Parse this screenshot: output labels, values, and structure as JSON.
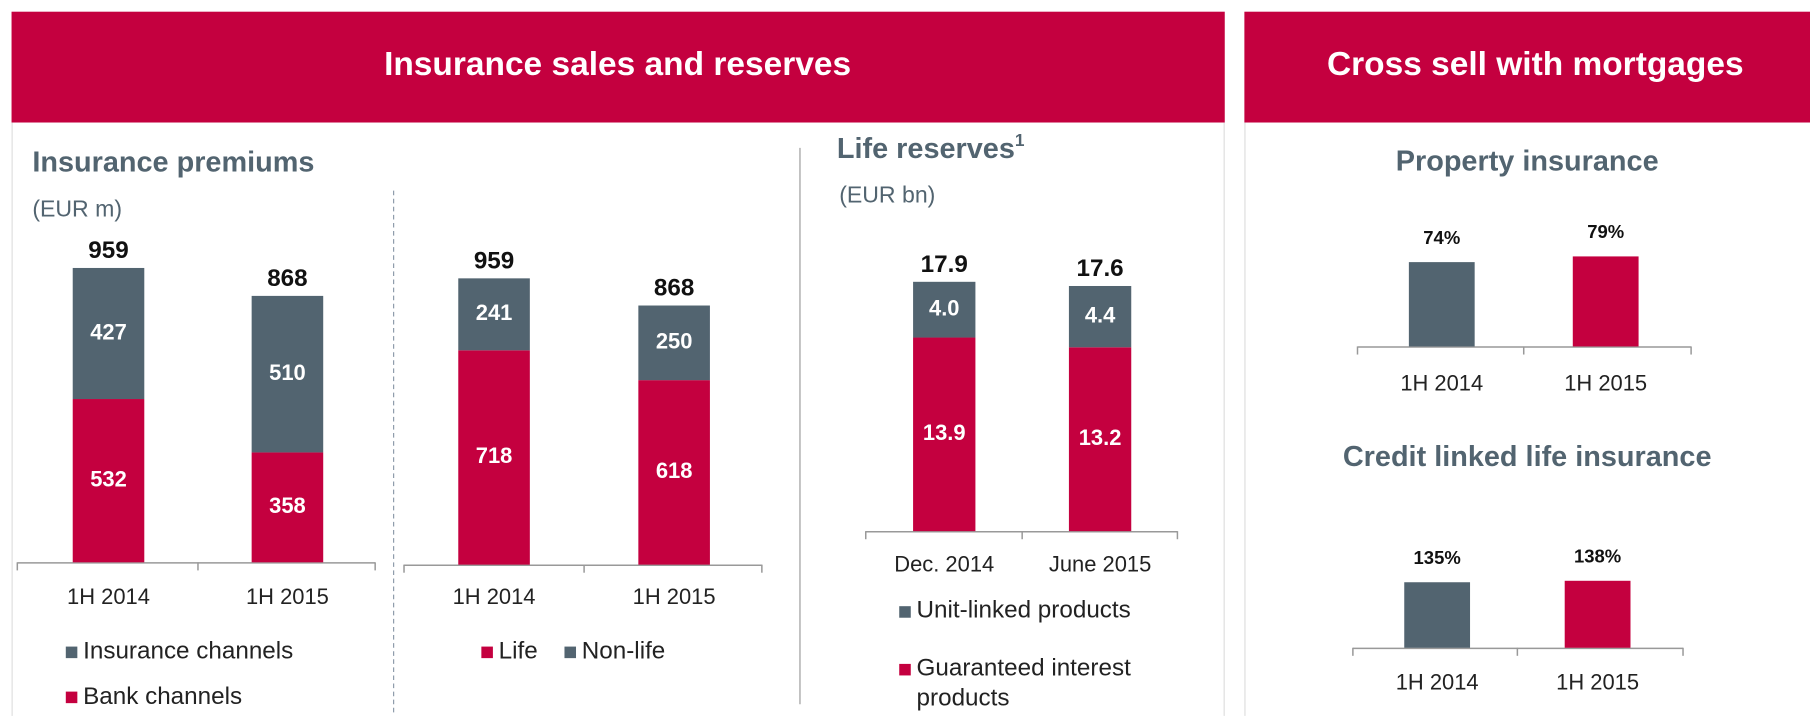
{
  "panels": [
    "Insurance sales and reserves",
    "Cross sell with mortgages"
  ],
  "chart_data": [
    {
      "type": "stacked-bar",
      "title": "Insurance premiums",
      "subtitle": "(EUR m)",
      "categories": [
        "1H 2014",
        "1H 2015"
      ],
      "series": [
        {
          "name": "Bank channels",
          "color": "#c4003f",
          "values": [
            532,
            358
          ]
        },
        {
          "name": "Insurance channels",
          "color": "#526470",
          "values": [
            427,
            510
          ]
        }
      ],
      "totals": [
        959,
        868
      ],
      "legend_order": [
        1,
        0
      ]
    },
    {
      "type": "stacked-bar",
      "categories": [
        "1H 2014",
        "1H 2015"
      ],
      "series": [
        {
          "name": "Life",
          "color": "#c4003f",
          "values": [
            718,
            618
          ]
        },
        {
          "name": "Non-life",
          "color": "#526470",
          "values": [
            241,
            250
          ]
        }
      ],
      "totals": [
        959,
        868
      ],
      "legend_order": [
        0,
        1
      ]
    },
    {
      "type": "stacked-bar",
      "title": "Life reserves",
      "title_note": "1",
      "subtitle": "(EUR bn)",
      "categories": [
        "Dec. 2014",
        "June 2015"
      ],
      "series": [
        {
          "name": "Guaranteed interest products",
          "color": "#c4003f",
          "values": [
            13.9,
            13.2
          ]
        },
        {
          "name": "Unit-linked products",
          "color": "#526470",
          "values": [
            4.0,
            4.4
          ],
          "value_labels": [
            "4.0",
            "4.4"
          ]
        }
      ],
      "totals": [
        17.9,
        17.6
      ],
      "legend_order": [
        1,
        0
      ]
    },
    {
      "type": "bar",
      "title": "Property insurance",
      "categories": [
        "1H 2014",
        "1H 2015"
      ],
      "values": [
        74,
        79
      ],
      "value_labels": [
        "74%",
        "79%"
      ],
      "colors": [
        "#526470",
        "#c4003f"
      ]
    },
    {
      "type": "bar",
      "title": "Credit linked life insurance",
      "categories": [
        "1H 2014",
        "1H 2015"
      ],
      "values": [
        135,
        138
      ],
      "value_labels": [
        "135%",
        "138%"
      ],
      "colors": [
        "#526470",
        "#c4003f"
      ]
    }
  ]
}
